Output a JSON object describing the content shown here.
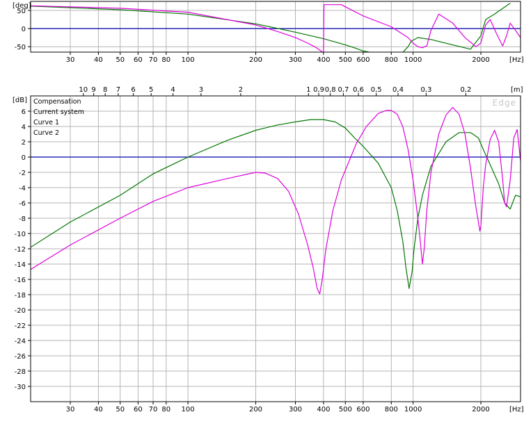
{
  "chart_data": [
    {
      "type": "line",
      "x_scale": "log",
      "xlim": [
        20,
        3000
      ],
      "ylim": [
        -65,
        75
      ],
      "ylabel": "[deg]",
      "xlabel": "[Hz]",
      "grid": true,
      "y_ticks": [
        {
          "v": 50,
          "label": "50"
        },
        {
          "v": 0,
          "label": "0"
        },
        {
          "v": -50,
          "label": "-50"
        }
      ],
      "x_ticks": [
        {
          "v": 30,
          "label": "30"
        },
        {
          "v": 40,
          "label": "40"
        },
        {
          "v": 50,
          "label": "50"
        },
        {
          "v": 60,
          "label": "60"
        },
        {
          "v": 70,
          "label": "70"
        },
        {
          "v": 80,
          "label": "80"
        },
        {
          "v": 100,
          "label": "100"
        },
        {
          "v": 200,
          "label": "200"
        },
        {
          "v": 300,
          "label": "300"
        },
        {
          "v": 400,
          "label": "400"
        },
        {
          "v": 500,
          "label": "500"
        },
        {
          "v": 600,
          "label": "600"
        },
        {
          "v": 800,
          "label": "800"
        },
        {
          "v": 1000,
          "label": "1000"
        },
        {
          "v": 2000,
          "label": "2000"
        }
      ],
      "series": [
        {
          "name": "Compensation",
          "color": "#0000aa",
          "x": [
            20,
            3000
          ],
          "y": [
            0,
            0
          ]
        },
        {
          "name": "Curve 1",
          "color": "#007700",
          "x": [
            20,
            50,
            100,
            200,
            300,
            400,
            500,
            560,
            600,
            650,
            900,
            950,
            980,
            1050,
            1200,
            1500,
            1800,
            2000,
            2100,
            2300,
            2700
          ],
          "y": [
            62,
            52,
            40,
            13,
            -10,
            -28,
            -45,
            -55,
            -62,
            -66,
            -66,
            -50,
            -35,
            -25,
            -30,
            -45,
            -57,
            -20,
            25,
            40,
            70
          ]
        },
        {
          "name": "Curve 2",
          "color": "#dd00dd",
          "x": [
            20,
            50,
            100,
            200,
            250,
            300,
            340,
            370,
            390,
            398,
            400,
            402,
            480,
            500,
            600,
            800,
            950,
            1000,
            1050,
            1100,
            1150,
            1200,
            1300,
            1500,
            1700,
            1900,
            2000,
            2100,
            2200,
            2350,
            2500,
            2600,
            2700,
            2850,
            3000
          ],
          "y": [
            63,
            56,
            45,
            10,
            -8,
            -25,
            -40,
            -52,
            -62,
            -66,
            -66,
            66,
            66,
            60,
            35,
            5,
            -25,
            -40,
            -50,
            -53,
            -48,
            -5,
            40,
            15,
            -25,
            -50,
            -40,
            10,
            25,
            -15,
            -48,
            -20,
            15,
            -5,
            -25
          ]
        }
      ]
    },
    {
      "type": "line",
      "x_scale": "log",
      "xlim": [
        20,
        3000
      ],
      "ylim": [
        -32,
        8
      ],
      "ylabel": "[dB]",
      "xlabel": "[Hz]",
      "grid": true,
      "watermark": "Edge",
      "legend_position": "top-left",
      "legend": [
        {
          "label": "Compensation",
          "color": "#0000aa"
        },
        {
          "label": "Current system",
          "color": "#cc0000"
        },
        {
          "label": "Curve 1",
          "color": "#007700"
        },
        {
          "label": "Curve 2",
          "color": "#dd00dd"
        }
      ],
      "y_ticks": [
        {
          "v": 6,
          "label": "6"
        },
        {
          "v": 4,
          "label": "4"
        },
        {
          "v": 2,
          "label": "2"
        },
        {
          "v": 0,
          "label": "0"
        },
        {
          "v": -2,
          "label": "-2"
        },
        {
          "v": -4,
          "label": "-4"
        },
        {
          "v": -6,
          "label": "-6"
        },
        {
          "v": -8,
          "label": "-8"
        },
        {
          "v": -10,
          "label": "-10"
        },
        {
          "v": -12,
          "label": "-12"
        },
        {
          "v": -14,
          "label": "-14"
        },
        {
          "v": -16,
          "label": "-16"
        },
        {
          "v": -18,
          "label": "-18"
        },
        {
          "v": -20,
          "label": "-20"
        },
        {
          "v": -22,
          "label": "-22"
        },
        {
          "v": -24,
          "label": "-24"
        },
        {
          "v": -26,
          "label": "-26"
        },
        {
          "v": -28,
          "label": "-28"
        },
        {
          "v": -30,
          "label": "-30"
        }
      ],
      "x_ticks": [
        {
          "v": 30,
          "label": "30"
        },
        {
          "v": 40,
          "label": "40"
        },
        {
          "v": 50,
          "label": "50"
        },
        {
          "v": 60,
          "label": "60"
        },
        {
          "v": 70,
          "label": "70"
        },
        {
          "v": 80,
          "label": "80"
        },
        {
          "v": 100,
          "label": "100"
        },
        {
          "v": 200,
          "label": "200"
        },
        {
          "v": 300,
          "label": "300"
        },
        {
          "v": 400,
          "label": "400"
        },
        {
          "v": 500,
          "label": "500"
        },
        {
          "v": 600,
          "label": "600"
        },
        {
          "v": 800,
          "label": "800"
        },
        {
          "v": 1000,
          "label": "1000"
        },
        {
          "v": 2000,
          "label": "2000"
        }
      ],
      "top_axis": {
        "unit": "[m]",
        "ticks": [
          {
            "v": 34.3,
            "label": "10"
          },
          {
            "v": 38.1,
            "label": "9"
          },
          {
            "v": 42.9,
            "label": "8"
          },
          {
            "v": 49,
            "label": "7"
          },
          {
            "v": 57.2,
            "label": "6"
          },
          {
            "v": 68.6,
            "label": "5"
          },
          {
            "v": 85.8,
            "label": "4"
          },
          {
            "v": 114.3,
            "label": "3"
          },
          {
            "v": 171.5,
            "label": "2"
          },
          {
            "v": 343,
            "label": "1"
          },
          {
            "v": 381,
            "label": "0,9"
          },
          {
            "v": 428.8,
            "label": "0,8"
          },
          {
            "v": 490,
            "label": "0,7"
          },
          {
            "v": 571.7,
            "label": "0,6"
          },
          {
            "v": 686,
            "label": "0,5"
          },
          {
            "v": 857.5,
            "label": "0,4"
          },
          {
            "v": 1143,
            "label": "0,3"
          },
          {
            "v": 1715,
            "label": "0,2"
          }
        ]
      },
      "series": [
        {
          "name": "Compensation",
          "color": "#0000aa",
          "x": [
            20,
            3000
          ],
          "y": [
            0,
            0
          ]
        },
        {
          "name": "Curve 1",
          "color": "#007700",
          "x": [
            20,
            30,
            50,
            70,
            100,
            150,
            200,
            250,
            300,
            350,
            400,
            450,
            500,
            550,
            600,
            700,
            800,
            850,
            900,
            930,
            960,
            990,
            1010,
            1050,
            1100,
            1200,
            1400,
            1600,
            1800,
            1950,
            2050,
            2200,
            2400,
            2550,
            2700,
            2850,
            3000
          ],
          "y": [
            -11.8,
            -8.5,
            -5,
            -2.2,
            0,
            2.2,
            3.5,
            4.2,
            4.6,
            4.9,
            4.9,
            4.6,
            3.8,
            2.5,
            1.4,
            -0.8,
            -4,
            -7,
            -11,
            -14.5,
            -17.2,
            -15,
            -12,
            -8,
            -5,
            -1.2,
            2,
            3.2,
            3.2,
            2.5,
            1,
            -1,
            -3.5,
            -6,
            -6.8,
            -5,
            -5.2
          ]
        },
        {
          "name": "Curve 2",
          "color": "#dd00dd",
          "x": [
            20,
            30,
            50,
            70,
            100,
            150,
            200,
            220,
            250,
            280,
            310,
            340,
            360,
            375,
            385,
            395,
            410,
            440,
            480,
            520,
            560,
            620,
            700,
            760,
            800,
            850,
            900,
            950,
            1000,
            1050,
            1080,
            1100,
            1120,
            1150,
            1200,
            1300,
            1400,
            1500,
            1600,
            1700,
            1800,
            1900,
            1950,
            1980,
            2000,
            2050,
            2100,
            2200,
            2300,
            2400,
            2500,
            2550,
            2600,
            2700,
            2800,
            2900,
            3000
          ],
          "y": [
            -14.7,
            -11.5,
            -8,
            -5.8,
            -4,
            -2.8,
            -2,
            -2.1,
            -2.8,
            -4.5,
            -7.5,
            -11.5,
            -14.5,
            -17.2,
            -17.9,
            -16,
            -12,
            -7,
            -3,
            -0.5,
            1.8,
            4,
            5.7,
            6.1,
            6.1,
            5.6,
            4,
            1,
            -3,
            -8,
            -11.5,
            -14,
            -12,
            -7,
            -2,
            3,
            5.5,
            6.5,
            5.6,
            3,
            -1.5,
            -6.5,
            -8.5,
            -9.7,
            -9,
            -4,
            -1,
            2.3,
            3.5,
            2,
            -3,
            -6,
            -6.5,
            -3,
            2.5,
            3.6,
            -0.5
          ]
        }
      ]
    }
  ]
}
